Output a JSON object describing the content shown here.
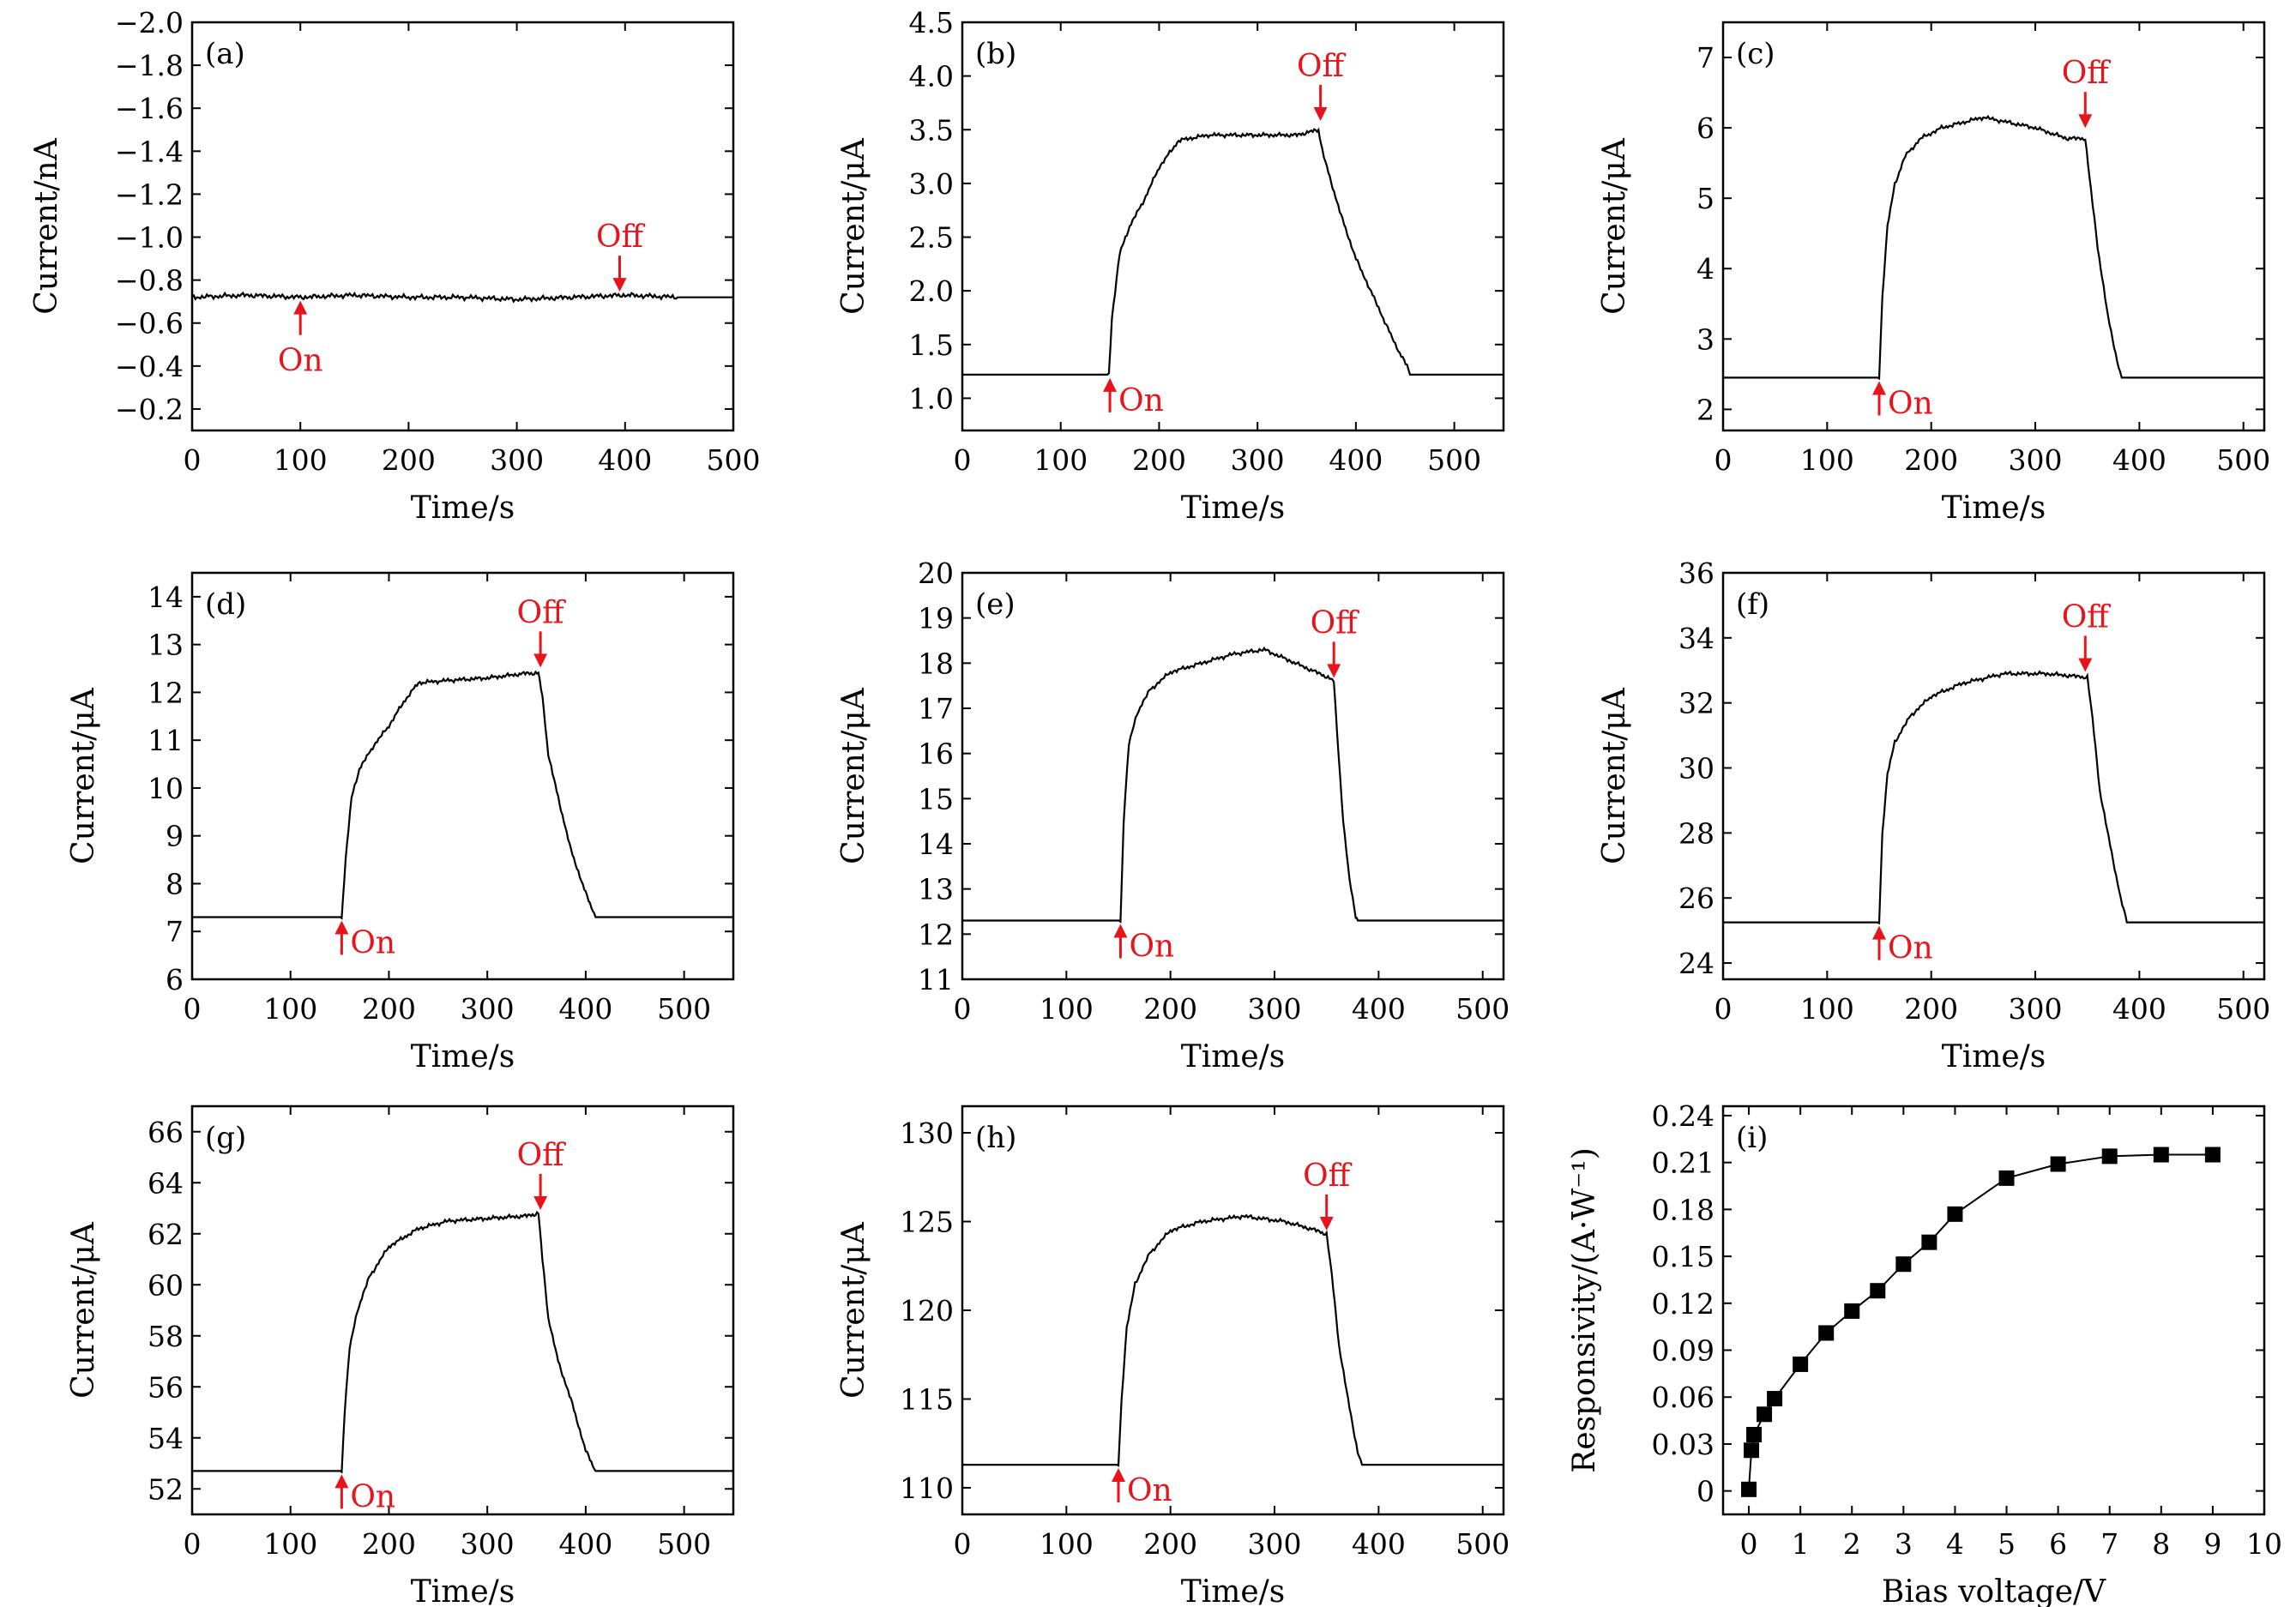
{
  "figure": {
    "annotation_color": "#e8141b",
    "line_color": "#000000"
  },
  "chart_data": [
    {
      "type": "line",
      "label": "(a)",
      "xlabel": "Time/s",
      "ylabel": "Current/nA",
      "xlim": [
        0,
        500
      ],
      "ylim": [
        -0.1,
        -2.0
      ],
      "y_inverted": true,
      "xticks": [
        "0",
        "100",
        "200",
        "300",
        "400",
        "500"
      ],
      "yticks": [
        "−0.2",
        "−0.4",
        "−0.6",
        "−0.8",
        "−1.0",
        "−1.2",
        "−1.4",
        "−1.6",
        "−1.8",
        "−2.0"
      ],
      "series": [
        {
          "x": [
            0,
            50,
            100,
            150,
            200,
            250,
            300,
            350,
            400,
            450,
            500
          ],
          "y": [
            -0.72,
            -0.73,
            -0.72,
            -0.73,
            -0.72,
            -0.72,
            -0.71,
            -0.72,
            -0.73,
            -0.72,
            -0.72
          ]
        }
      ],
      "annotations": [
        {
          "text": "On",
          "x": 100,
          "y": -0.72,
          "direction": "up"
        },
        {
          "text": "Off",
          "x": 395,
          "y": -0.73,
          "direction": "down"
        }
      ]
    },
    {
      "type": "line",
      "label": "(b)",
      "xlabel": "Time/s",
      "ylabel": "Current/μA",
      "xlim": [
        0,
        550
      ],
      "ylim": [
        0.7,
        4.5
      ],
      "xticks": [
        "0",
        "100",
        "200",
        "300",
        "400",
        "500"
      ],
      "yticks": [
        "1.0",
        "1.5",
        "2.0",
        "2.5",
        "3.0",
        "3.5",
        "4.0",
        "4.5"
      ],
      "series": [
        {
          "x": [
            0,
            149,
            152,
            160,
            170,
            185,
            200,
            220,
            250,
            300,
            340,
            362,
            366,
            372,
            385,
            400,
            420,
            440,
            452,
            455,
            550
          ],
          "y": [
            1.22,
            1.22,
            1.75,
            2.35,
            2.6,
            2.85,
            3.15,
            3.4,
            3.45,
            3.45,
            3.45,
            3.5,
            3.3,
            3.1,
            2.7,
            2.3,
            1.9,
            1.5,
            1.3,
            1.22,
            1.22
          ]
        }
      ],
      "annotations": [
        {
          "text": "On",
          "x": 150,
          "y": 1.22,
          "direction": "up"
        },
        {
          "text": "Off",
          "x": 364,
          "y": 3.55,
          "direction": "down"
        }
      ]
    },
    {
      "type": "line",
      "label": "(c)",
      "xlabel": "Time/s",
      "ylabel": "Current/μA",
      "xlim": [
        0,
        520
      ],
      "ylim": [
        1.7,
        7.5
      ],
      "xticks": [
        "0",
        "100",
        "200",
        "300",
        "400",
        "500"
      ],
      "yticks": [
        "2",
        "3",
        "4",
        "5",
        "6",
        "7"
      ],
      "series": [
        {
          "x": [
            0,
            150,
            153,
            158,
            165,
            175,
            190,
            210,
            250,
            300,
            330,
            348,
            352,
            360,
            370,
            380,
            383,
            520
          ],
          "y": [
            2.45,
            2.45,
            3.6,
            4.6,
            5.2,
            5.6,
            5.85,
            6.0,
            6.15,
            6.0,
            5.85,
            5.85,
            5.3,
            4.3,
            3.3,
            2.6,
            2.45,
            2.45
          ]
        }
      ],
      "annotations": [
        {
          "text": "On",
          "x": 150,
          "y": 2.45,
          "direction": "up"
        },
        {
          "text": "Off",
          "x": 348,
          "y": 5.95,
          "direction": "down"
        }
      ]
    },
    {
      "type": "line",
      "label": "(d)",
      "xlabel": "Time/s",
      "ylabel": "Current/μA",
      "xlim": [
        0,
        550
      ],
      "ylim": [
        6,
        14.5
      ],
      "xticks": [
        "0",
        "100",
        "200",
        "300",
        "400",
        "500"
      ],
      "yticks": [
        "6",
        "7",
        "8",
        "9",
        "10",
        "11",
        "12",
        "13",
        "14"
      ],
      "series": [
        {
          "x": [
            0,
            152,
            156,
            162,
            170,
            185,
            200,
            215,
            230,
            260,
            300,
            340,
            352,
            356,
            362,
            372,
            385,
            400,
            410,
            550
          ],
          "y": [
            7.3,
            7.3,
            8.5,
            9.8,
            10.4,
            10.9,
            11.3,
            11.8,
            12.2,
            12.25,
            12.3,
            12.4,
            12.4,
            11.9,
            10.7,
            9.8,
            8.7,
            7.8,
            7.3,
            7.3
          ]
        }
      ],
      "annotations": [
        {
          "text": "On",
          "x": 152,
          "y": 7.3,
          "direction": "up"
        },
        {
          "text": "Off",
          "x": 354,
          "y": 12.45,
          "direction": "down"
        }
      ]
    },
    {
      "type": "line",
      "label": "(e)",
      "xlabel": "Time/s",
      "ylabel": "Current/μA",
      "xlim": [
        0,
        520
      ],
      "ylim": [
        11,
        20
      ],
      "xticks": [
        "0",
        "100",
        "200",
        "300",
        "400",
        "500"
      ],
      "yticks": [
        "11",
        "12",
        "13",
        "14",
        "15",
        "16",
        "17",
        "18",
        "19",
        "20"
      ],
      "series": [
        {
          "x": [
            0,
            152,
            155,
            160,
            168,
            180,
            200,
            230,
            260,
            290,
            320,
            350,
            357,
            360,
            366,
            372,
            378,
            380,
            520
          ],
          "y": [
            12.3,
            12.3,
            14.5,
            16.2,
            16.9,
            17.4,
            17.8,
            18.0,
            18.2,
            18.3,
            18.0,
            17.7,
            17.6,
            16.5,
            14.5,
            13.2,
            12.4,
            12.3,
            12.3
          ]
        }
      ],
      "annotations": [
        {
          "text": "On",
          "x": 152,
          "y": 12.3,
          "direction": "up"
        },
        {
          "text": "Off",
          "x": 357,
          "y": 17.6,
          "direction": "down"
        }
      ]
    },
    {
      "type": "line",
      "label": "(f)",
      "xlabel": "Time/s",
      "ylabel": "Current/μA",
      "xlim": [
        0,
        520
      ],
      "ylim": [
        23.5,
        36
      ],
      "xticks": [
        "0",
        "100",
        "200",
        "300",
        "400",
        "500"
      ],
      "yticks": [
        "24",
        "26",
        "28",
        "30",
        "32",
        "34",
        "36"
      ],
      "series": [
        {
          "x": [
            0,
            150,
            153,
            158,
            165,
            180,
            200,
            230,
            270,
            310,
            345,
            350,
            355,
            362,
            372,
            382,
            388,
            520
          ],
          "y": [
            25.25,
            25.25,
            28.0,
            29.8,
            30.8,
            31.6,
            32.2,
            32.6,
            32.9,
            32.9,
            32.8,
            32.8,
            31.5,
            29.3,
            27.6,
            26.0,
            25.25,
            25.25
          ]
        }
      ],
      "annotations": [
        {
          "text": "On",
          "x": 150,
          "y": 25.25,
          "direction": "up"
        },
        {
          "text": "Off",
          "x": 348,
          "y": 32.85,
          "direction": "down"
        }
      ]
    },
    {
      "type": "line",
      "label": "(g)",
      "xlabel": "Time/s",
      "ylabel": "Current/μA",
      "xlim": [
        0,
        550
      ],
      "ylim": [
        51,
        67
      ],
      "xticks": [
        "0",
        "100",
        "200",
        "300",
        "400",
        "500"
      ],
      "yticks": [
        "52",
        "54",
        "56",
        "58",
        "60",
        "62",
        "64",
        "66"
      ],
      "series": [
        {
          "x": [
            0,
            152,
            155,
            160,
            168,
            180,
            200,
            230,
            260,
            300,
            340,
            352,
            356,
            362,
            372,
            385,
            400,
            410,
            550
          ],
          "y": [
            52.7,
            52.7,
            55.0,
            57.5,
            59.0,
            60.3,
            61.5,
            62.2,
            62.5,
            62.6,
            62.7,
            62.8,
            61.0,
            58.7,
            57.0,
            55.5,
            53.5,
            52.7,
            52.7
          ]
        }
      ],
      "annotations": [
        {
          "text": "On",
          "x": 152,
          "y": 52.7,
          "direction": "up"
        },
        {
          "text": "Off",
          "x": 354,
          "y": 62.8,
          "direction": "down"
        }
      ]
    },
    {
      "type": "line",
      "label": "(h)",
      "xlabel": "Time/s",
      "ylabel": "Current/μA",
      "xlim": [
        0,
        520
      ],
      "ylim": [
        108.5,
        131.5
      ],
      "xticks": [
        "0",
        "100",
        "200",
        "300",
        "400",
        "500"
      ],
      "yticks": [
        "110",
        "115",
        "120",
        "125",
        "130"
      ],
      "series": [
        {
          "x": [
            0,
            150,
            153,
            158,
            166,
            180,
            200,
            230,
            270,
            310,
            340,
            350,
            355,
            362,
            372,
            380,
            384,
            520
          ],
          "y": [
            111.3,
            111.3,
            115.0,
            119.0,
            121.5,
            123.2,
            124.5,
            125.0,
            125.3,
            125.0,
            124.5,
            124.3,
            122.0,
            118.0,
            114.5,
            112.0,
            111.3,
            111.3
          ]
        }
      ],
      "annotations": [
        {
          "text": "On",
          "x": 150,
          "y": 111.3,
          "direction": "up"
        },
        {
          "text": "Off",
          "x": 350,
          "y": 124.3,
          "direction": "down"
        }
      ]
    },
    {
      "type": "scatter",
      "label": "(i)",
      "xlabel": "Bias voltage/V",
      "ylabel": "Responsivity/(A·W⁻¹)",
      "xlim": [
        -0.5,
        10
      ],
      "ylim": [
        -0.015,
        0.246
      ],
      "xticks": [
        "0",
        "1",
        "2",
        "3",
        "4",
        "5",
        "6",
        "7",
        "8",
        "9",
        "10"
      ],
      "yticks": [
        "0",
        "0.03",
        "0.06",
        "0.09",
        "0.12",
        "0.15",
        "0.18",
        "0.21",
        "0.24"
      ],
      "series": [
        {
          "x": [
            0,
            0.05,
            0.1,
            0.3,
            0.5,
            1,
            1.5,
            2,
            2.5,
            3,
            3.5,
            4,
            5,
            6,
            7,
            8,
            9
          ],
          "y": [
            0.001,
            0.026,
            0.036,
            0.049,
            0.059,
            0.081,
            0.101,
            0.115,
            0.128,
            0.145,
            0.159,
            0.177,
            0.2,
            0.209,
            0.214,
            0.215,
            0.215
          ]
        }
      ]
    }
  ]
}
